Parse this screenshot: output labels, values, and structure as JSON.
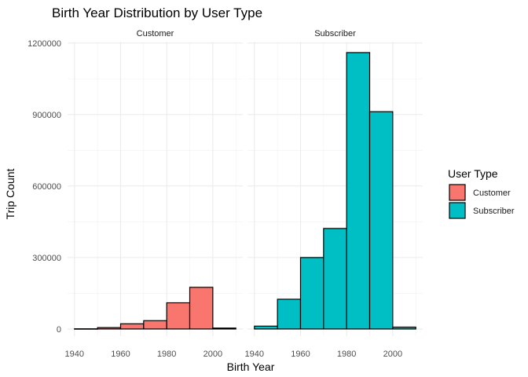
{
  "chart_data": {
    "type": "bar",
    "title": "Birth Year Distribution by User Type",
    "xlabel": "Birth Year",
    "ylabel": "Trip Count",
    "xlim": [
      1937,
      2013
    ],
    "ylim": [
      -30000,
      1206000
    ],
    "x_ticks": [
      1940,
      1960,
      1980,
      2000
    ],
    "y_ticks": [
      0,
      300000,
      600000,
      900000,
      1200000
    ],
    "y_tick_labels": [
      "0",
      "300000",
      "600000",
      "900000",
      "1200000"
    ],
    "bin_width": 10,
    "grid": true,
    "legend": {
      "title": "User Type",
      "position": "right",
      "entries": [
        {
          "label": "Customer",
          "color": "#F8766D"
        },
        {
          "label": "Subscriber",
          "color": "#00BFC4"
        }
      ]
    },
    "panels": [
      {
        "name": "Customer",
        "color": "#F8766D",
        "bins": [
          {
            "start": 1940,
            "end": 1950,
            "value": 1000
          },
          {
            "start": 1950,
            "end": 1960,
            "value": 6000
          },
          {
            "start": 1960,
            "end": 1970,
            "value": 22000
          },
          {
            "start": 1970,
            "end": 1980,
            "value": 35000
          },
          {
            "start": 1980,
            "end": 1990,
            "value": 110000
          },
          {
            "start": 1990,
            "end": 2000,
            "value": 175000
          },
          {
            "start": 2000,
            "end": 2010,
            "value": 4000
          }
        ]
      },
      {
        "name": "Subscriber",
        "color": "#00BFC4",
        "bins": [
          {
            "start": 1940,
            "end": 1950,
            "value": 12000
          },
          {
            "start": 1950,
            "end": 1960,
            "value": 125000
          },
          {
            "start": 1960,
            "end": 1970,
            "value": 300000
          },
          {
            "start": 1970,
            "end": 1980,
            "value": 422000
          },
          {
            "start": 1980,
            "end": 1990,
            "value": 1160000
          },
          {
            "start": 1990,
            "end": 2000,
            "value": 912000
          },
          {
            "start": 2000,
            "end": 2010,
            "value": 8000
          }
        ]
      }
    ]
  }
}
